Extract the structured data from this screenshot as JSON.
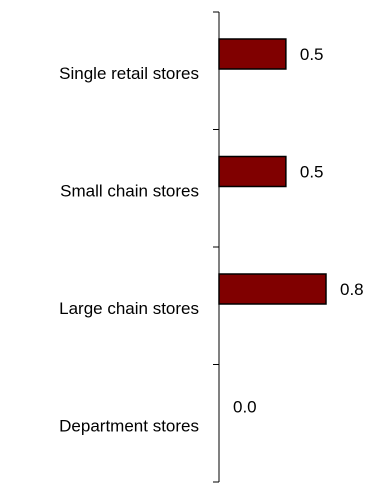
{
  "chart_data": {
    "type": "bar",
    "orientation": "horizontal",
    "categories": [
      "Single retail stores",
      "Small chain stores",
      "Large chain stores",
      "Department stores"
    ],
    "values": [
      0.5,
      0.5,
      0.8,
      0.0
    ],
    "value_labels": [
      "0.5",
      "0.5",
      "0.8",
      "0.0"
    ],
    "title": "",
    "xlabel": "",
    "ylabel": "",
    "xlim": [
      0,
      1
    ],
    "grid": false,
    "legend": "none",
    "colors": {
      "bar": "#800000",
      "bar_edge": "#000000",
      "axis": "#000000"
    }
  }
}
